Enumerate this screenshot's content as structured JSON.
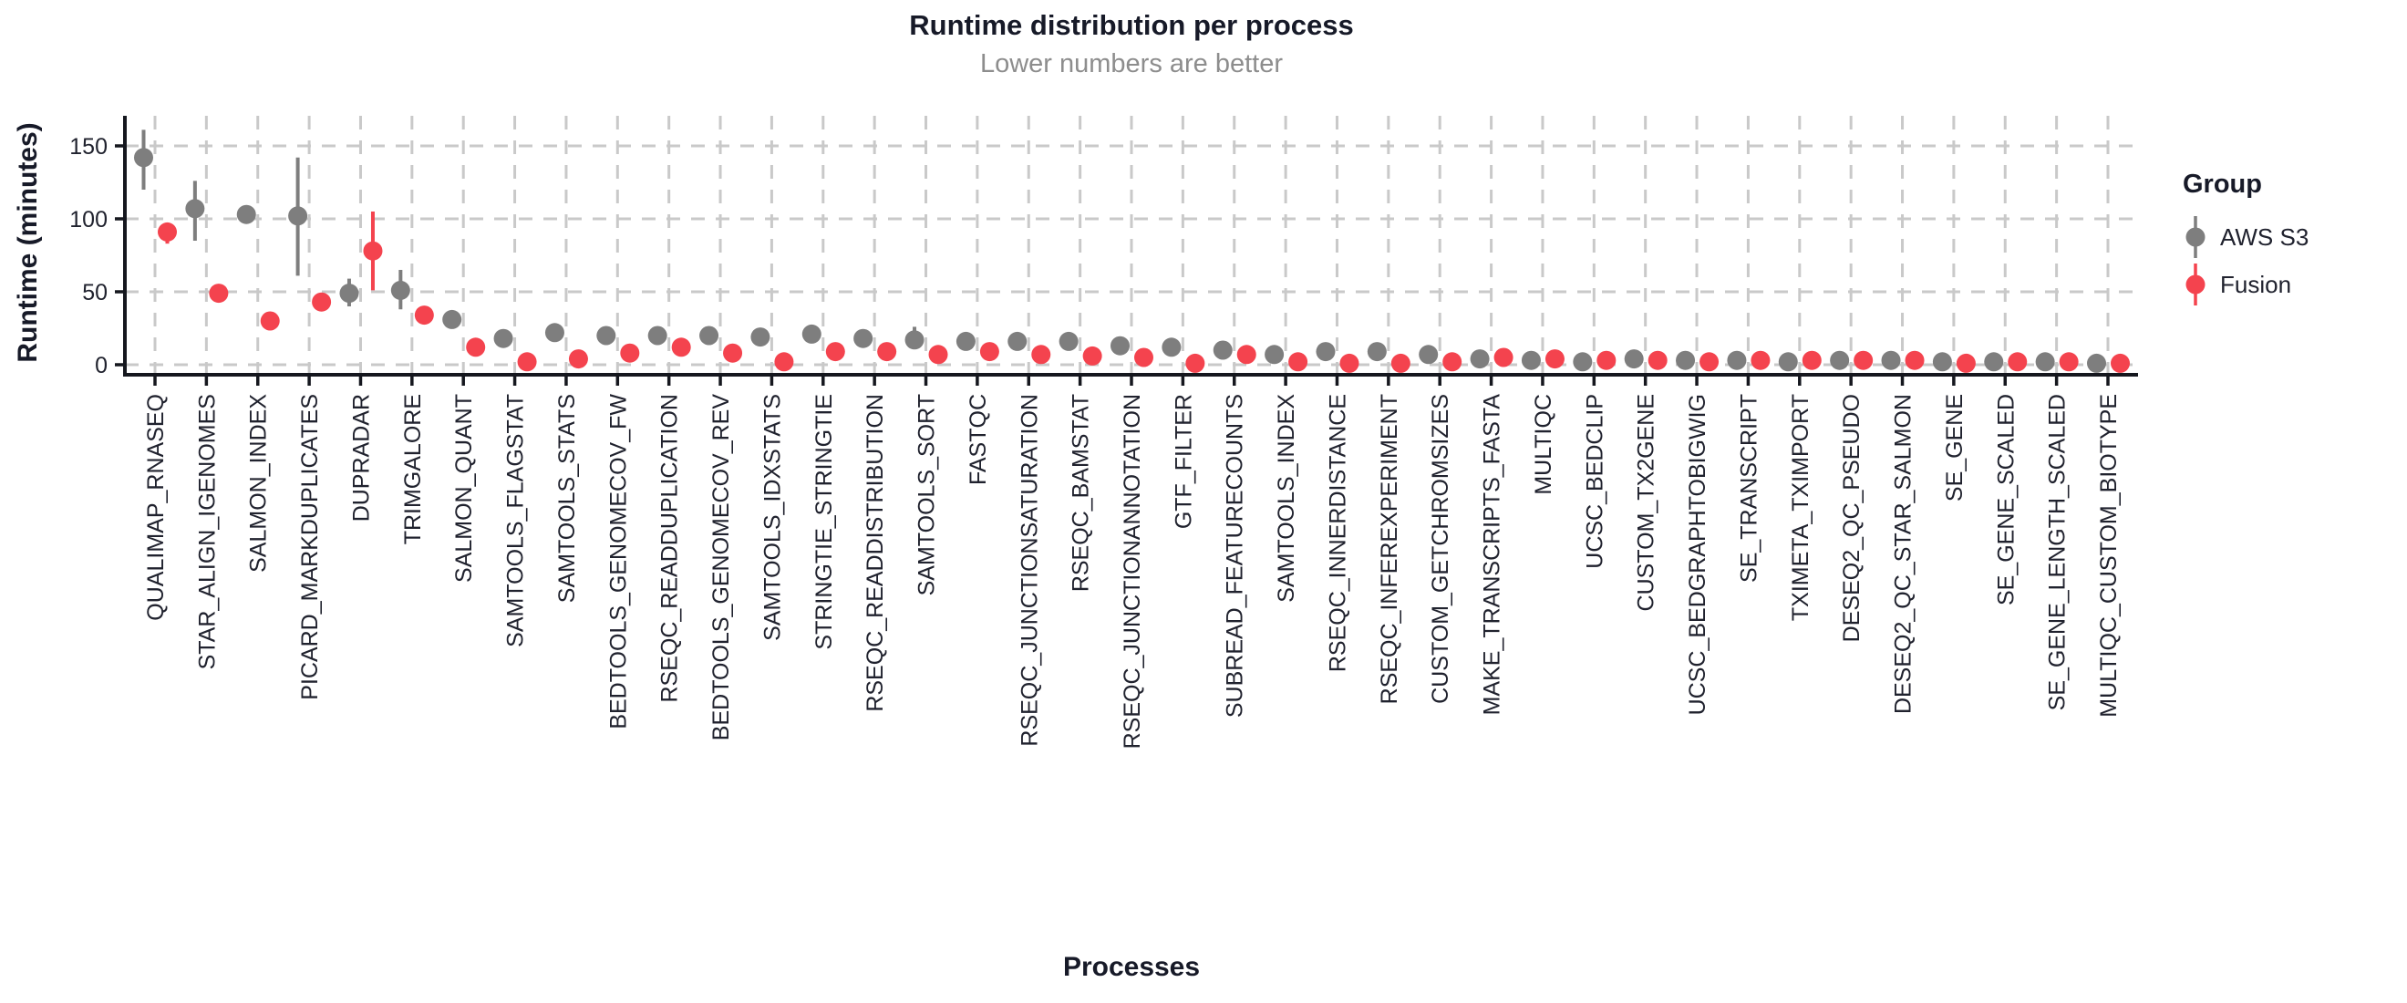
{
  "header": {
    "title": "Runtime distribution per process",
    "subtitle": "Lower numbers are better"
  },
  "axes": {
    "y_label": "Runtime (minutes)",
    "x_label": "Processes"
  },
  "legend": {
    "title": "Group",
    "items": [
      {
        "label": "AWS S3",
        "color": "#7e7e7e"
      },
      {
        "label": "Fusion",
        "color": "#f4434e"
      }
    ]
  },
  "colors": {
    "text_dark": "#171a28",
    "tick_label": "#20222e",
    "subtitle_gray": "#8d8d8d",
    "grid": "#c9c9c9",
    "axis": "#15171e",
    "aws": "#7e7e7e",
    "fusion": "#f4434e"
  },
  "chart_data": {
    "type": "scatter",
    "variant": "dodged-pointrange",
    "title": "Runtime distribution per process",
    "subtitle": "Lower numbers are better",
    "xlabel": "Processes",
    "ylabel": "Runtime (minutes)",
    "ylim": [
      0,
      165
    ],
    "yticks": [
      0,
      50,
      100,
      150
    ],
    "grid": "dashed",
    "legend_title": "Group",
    "legend_position": "right",
    "categories": [
      "QUALIMAP_RNASEQ",
      "STAR_ALIGN_IGENOMES",
      "SALMON_INDEX",
      "PICARD_MARKDUPLICATES",
      "DUPRADAR",
      "TRIMGALORE",
      "SALMON_QUANT",
      "SAMTOOLS_FLAGSTAT",
      "SAMTOOLS_STATS",
      "BEDTOOLS_GENOMECOV_FW",
      "RSEQC_READDUPLICATION",
      "BEDTOOLS_GENOMECOV_REV",
      "SAMTOOLS_IDXSTATS",
      "STRINGTIE_STRINGTIE",
      "RSEQC_READDISTRIBUTION",
      "SAMTOOLS_SORT",
      "FASTQC",
      "RSEQC_JUNCTIONSATURATION",
      "RSEQC_BAMSTAT",
      "RSEQC_JUNCTIONANNOTATION",
      "GTF_FILTER",
      "SUBREAD_FEATURECOUNTS",
      "SAMTOOLS_INDEX",
      "RSEQC_INNERDISTANCE",
      "RSEQC_INFEREXPERIMENT",
      "CUSTOM_GETCHROMSIZES",
      "MAKE_TRANSCRIPTS_FASTA",
      "MULTIQC",
      "UCSC_BEDCLIP",
      "CUSTOM_TX2GENE",
      "UCSC_BEDGRAPHTOBIGWIG",
      "SE_TRANSCRIPT",
      "TXIMETA_TXIMPORT",
      "DESEQ2_QC_PSEUDO",
      "DESEQ2_QC_STAR_SALMON",
      "SE_GENE",
      "SE_GENE_SCALED",
      "SE_GENE_LENGTH_SCALED",
      "MULTIQC_CUSTOM_BIOTYPE"
    ],
    "series": [
      {
        "name": "AWS S3",
        "color": "#7e7e7e",
        "values": [
          142,
          107,
          103,
          102,
          49,
          51,
          31,
          18,
          22,
          20,
          20,
          20,
          19,
          21,
          18,
          17,
          16,
          16,
          16,
          13,
          12,
          10,
          7,
          9,
          9,
          7,
          4,
          3,
          2,
          4,
          3,
          3,
          2,
          3,
          3,
          2,
          2,
          2,
          1
        ],
        "err_low": [
          120,
          85,
          100,
          61,
          40,
          38,
          28,
          16,
          18,
          18,
          18,
          18,
          15,
          19,
          16,
          12,
          14,
          14,
          14,
          12,
          11,
          8,
          4,
          8,
          8,
          6,
          4,
          3,
          2,
          4,
          3,
          3,
          2,
          3,
          3,
          2,
          1,
          2,
          1
        ],
        "err_high": [
          161,
          126,
          106,
          142,
          59,
          65,
          34,
          20,
          26,
          22,
          22,
          22,
          24,
          23,
          20,
          26,
          18,
          18,
          18,
          14,
          13,
          12,
          10,
          10,
          10,
          8,
          4,
          3,
          2,
          4,
          3,
          3,
          2,
          3,
          3,
          2,
          3,
          2,
          1
        ]
      },
      {
        "name": "Fusion",
        "color": "#f4434e",
        "values": [
          91,
          49,
          30,
          43,
          78,
          34,
          12,
          2,
          4,
          8,
          12,
          8,
          2,
          9,
          9,
          7,
          9,
          7,
          6,
          5,
          1,
          7,
          2,
          1,
          1,
          2,
          5,
          4,
          3,
          3,
          2,
          3,
          3,
          3,
          3,
          1,
          2,
          2,
          1
        ],
        "err_low": [
          83,
          46,
          30,
          38,
          51,
          31,
          10,
          1,
          3,
          7,
          11,
          7,
          1,
          8,
          8,
          6,
          8,
          6,
          5,
          4,
          1,
          6,
          1,
          1,
          1,
          1,
          5,
          4,
          3,
          2,
          2,
          3,
          3,
          3,
          3,
          1,
          1,
          1,
          1
        ],
        "err_high": [
          95,
          52,
          30,
          48,
          105,
          37,
          14,
          3,
          5,
          9,
          13,
          9,
          3,
          10,
          10,
          8,
          10,
          8,
          7,
          6,
          1,
          8,
          3,
          1,
          1,
          3,
          5,
          4,
          3,
          4,
          2,
          3,
          3,
          3,
          3,
          1,
          3,
          3,
          1
        ]
      }
    ]
  }
}
